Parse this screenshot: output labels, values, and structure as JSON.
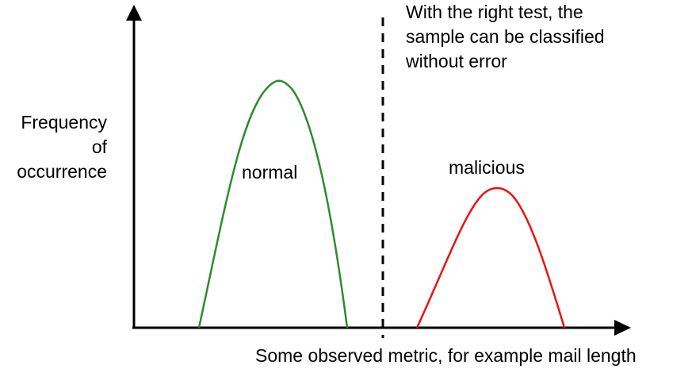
{
  "ylabel": [
    "Frequency",
    "of",
    "occurrence"
  ],
  "xlabel": "Some observed metric, for example mail length",
  "annotation": [
    "With the right test, the",
    "sample can be classified",
    "without error"
  ],
  "curves": [
    {
      "label": "normal",
      "color": "#2e8b2e"
    },
    {
      "label": "malicious",
      "color": "#ee1111"
    }
  ],
  "colors": {
    "axes": "#000000",
    "divider": "#000000"
  }
}
